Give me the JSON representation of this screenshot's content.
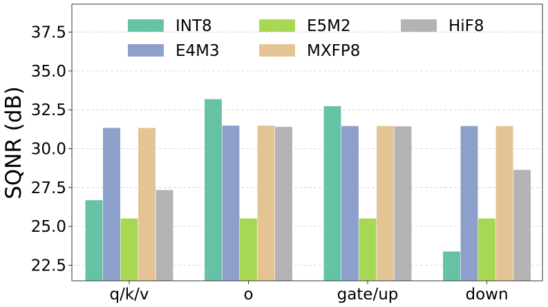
{
  "chart_data": {
    "type": "bar",
    "title": "",
    "xlabel": "",
    "ylabel": "SQNR (dB)",
    "ylim": [
      21.5,
      39.3
    ],
    "yticks": [
      22.5,
      25.0,
      27.5,
      30.0,
      32.5,
      35.0,
      37.5
    ],
    "ytick_labels": [
      "22.5",
      "25.0",
      "27.5",
      "30.0",
      "32.5",
      "35.0",
      "37.5"
    ],
    "grid": "y-dashed",
    "legend_position": "top",
    "categories": [
      "q/k/v",
      "o",
      "gate/up",
      "down"
    ],
    "series": [
      {
        "name": "INT8",
        "color": "#66c2a5",
        "values": [
          26.7,
          33.2,
          32.75,
          23.4
        ]
      },
      {
        "name": "E4M3",
        "color": "#8da0cb",
        "values": [
          31.35,
          31.5,
          31.47,
          31.47
        ]
      },
      {
        "name": "E5M2",
        "color": "#a6d854",
        "values": [
          25.52,
          25.52,
          25.52,
          25.52
        ]
      },
      {
        "name": "MXFP8",
        "color": "#e5c494",
        "values": [
          31.35,
          31.5,
          31.47,
          31.47
        ]
      },
      {
        "name": "HiF8",
        "color": "#b3b3b3",
        "values": [
          27.35,
          31.42,
          31.45,
          28.65
        ]
      }
    ],
    "legend_order": [
      "INT8",
      "E5M2",
      "HiF8",
      "E4M3",
      "MXFP8"
    ]
  }
}
